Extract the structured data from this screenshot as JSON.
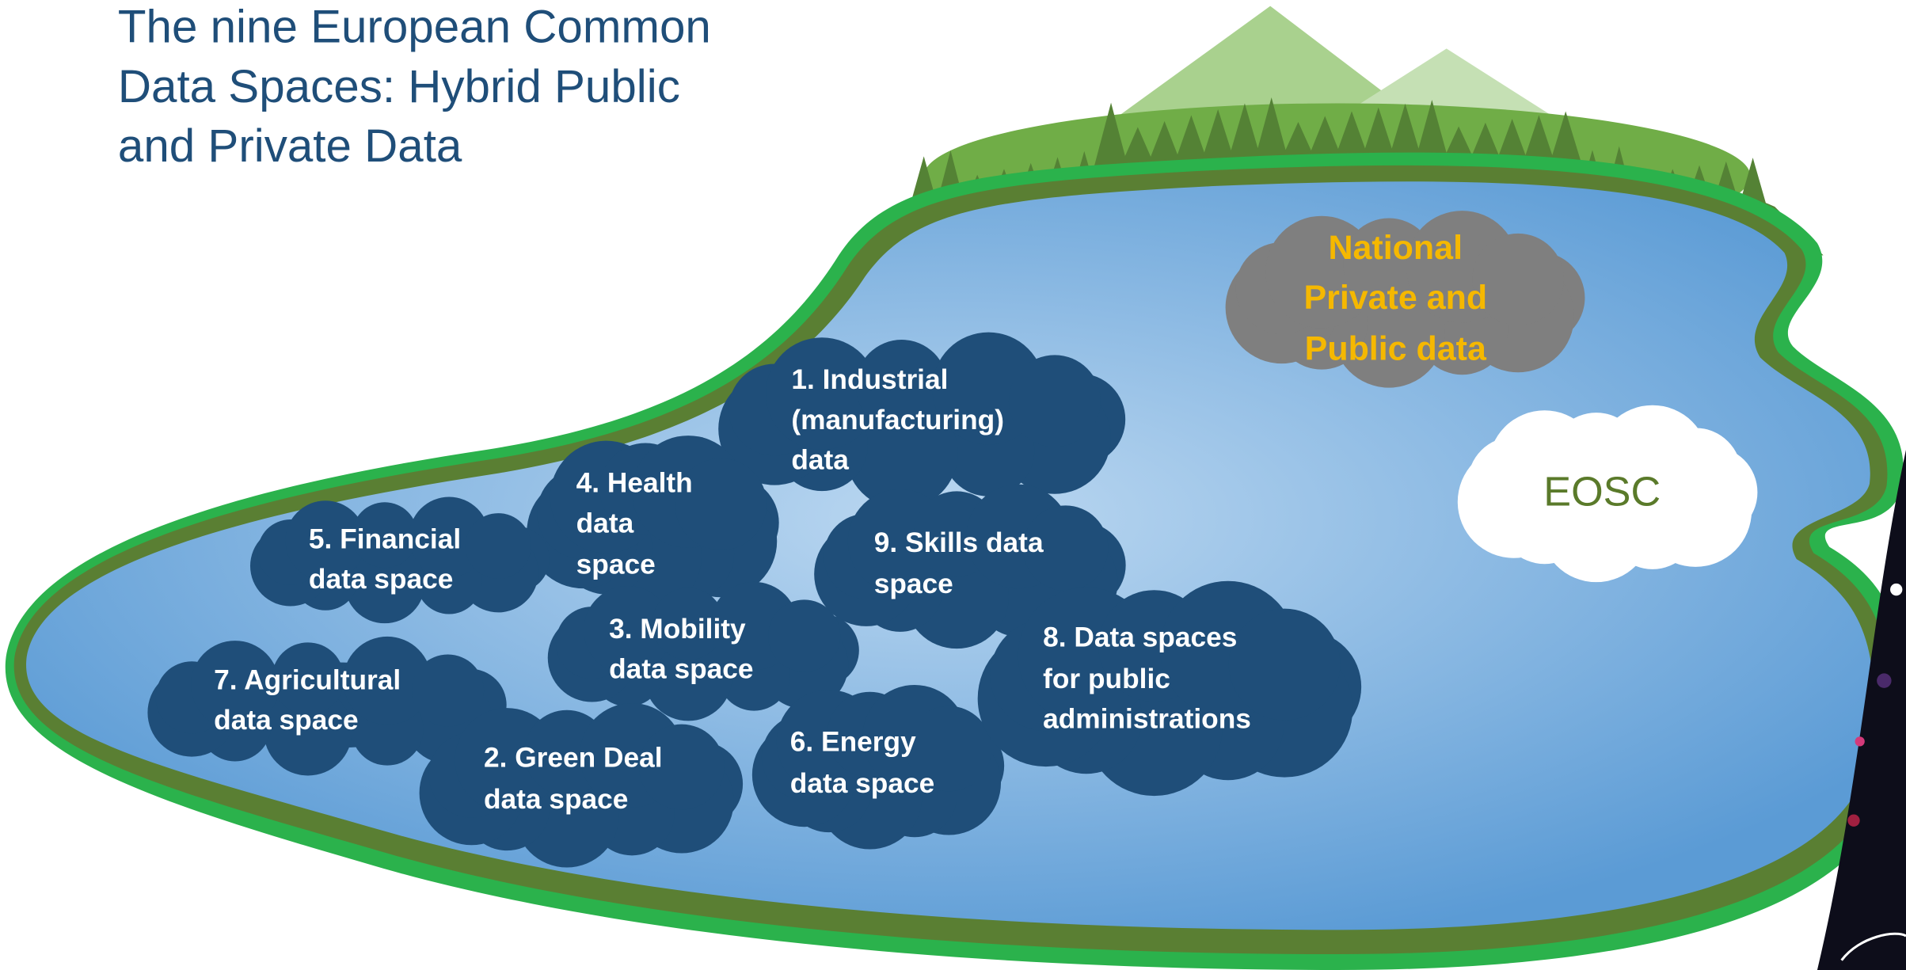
{
  "title_lines": [
    "The nine European Common",
    "Data Spaces: Hybrid Public",
    "and Private Data"
  ],
  "clouds": [
    {
      "lines": [
        "1. Industrial",
        "(manufacturing)",
        "data"
      ]
    },
    {
      "lines": [
        "4. Health",
        "data",
        "space"
      ]
    },
    {
      "lines": [
        "5. Financial",
        "data space"
      ]
    },
    {
      "lines": [
        "9. Skills data",
        "space"
      ]
    },
    {
      "lines": [
        "3. Mobility",
        "data space"
      ]
    },
    {
      "lines": [
        "7. Agricultural",
        "data space"
      ]
    },
    {
      "lines": [
        "2. Green Deal",
        "data space"
      ]
    },
    {
      "lines": [
        "6. Energy",
        "data space"
      ]
    },
    {
      "lines": [
        "8. Data spaces",
        "for public",
        "administrations"
      ]
    }
  ],
  "national": {
    "lines": [
      "National",
      "Private and",
      "Public data"
    ]
  },
  "eosc": "EOSC"
}
